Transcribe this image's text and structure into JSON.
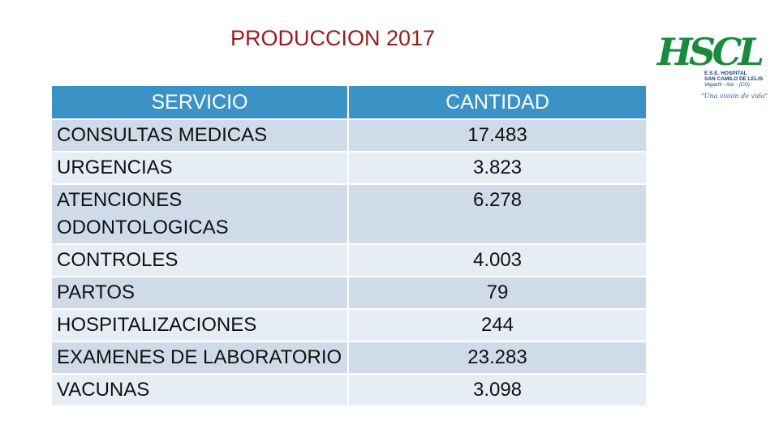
{
  "title": "PRODUCCION 2017",
  "table": {
    "headers": [
      "SERVICIO",
      "CANTIDAD"
    ],
    "rows": [
      {
        "servicio": "CONSULTAS MEDICAS",
        "cantidad": "17.483"
      },
      {
        "servicio": "URGENCIAS",
        "cantidad": "3.823"
      },
      {
        "servicio": "ATENCIONES ODONTOLOGICAS",
        "cantidad": "6.278"
      },
      {
        "servicio": "CONTROLES",
        "cantidad": "4.003"
      },
      {
        "servicio": "PARTOS",
        "cantidad": "79"
      },
      {
        "servicio": "HOSPITALIZACIONES",
        "cantidad": "244"
      },
      {
        "servicio": "EXAMENES DE LABORATORIO",
        "cantidad": "23.283"
      },
      {
        "servicio": "VACUNAS",
        "cantidad": "3.098"
      }
    ]
  },
  "logo": {
    "mark": "HSCL",
    "line1": "E.S.E. HOSPITAL",
    "line2": "SAN CAMILO DE LELIS",
    "line3": "Vegachí - Ant. - (CO)",
    "slogan": "\"Una visión de vida\"",
    "mark_color": "#1a8a3c",
    "accent_color": "#2a5fa8"
  }
}
